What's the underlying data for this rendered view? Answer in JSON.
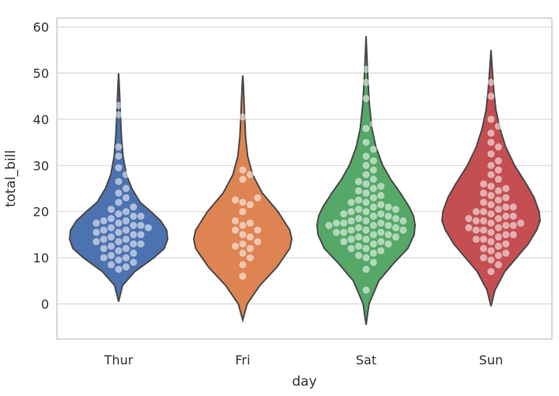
{
  "chart_data": {
    "type": "violin",
    "xlabel": "day",
    "ylabel": "total_bill",
    "ylim": [
      -8,
      62
    ],
    "yticks": [
      0,
      10,
      20,
      30,
      40,
      50,
      60
    ],
    "grid": true,
    "categories": [
      {
        "name": "Thur",
        "color": "#4c72b0",
        "kde": [
          [
            0.5,
            0.0
          ],
          [
            4,
            0.08
          ],
          [
            7,
            0.33
          ],
          [
            10,
            0.72
          ],
          [
            12,
            0.93
          ],
          [
            14,
            1.0
          ],
          [
            16,
            0.98
          ],
          [
            18,
            0.86
          ],
          [
            20,
            0.66
          ],
          [
            22,
            0.44
          ],
          [
            25,
            0.27
          ],
          [
            28,
            0.16
          ],
          [
            32,
            0.09
          ],
          [
            36,
            0.06
          ],
          [
            40,
            0.04
          ],
          [
            44,
            0.025
          ],
          [
            48,
            0.01
          ],
          [
            50,
            0.0
          ]
        ],
        "values": [
          7.5,
          8.0,
          8.5,
          9.0,
          9.5,
          10.0,
          10.0,
          10.5,
          11.0,
          11.5,
          12.0,
          12.0,
          12.5,
          13.0,
          13.0,
          13.5,
          13.5,
          14.0,
          14.0,
          14.5,
          15.0,
          15.0,
          15.5,
          15.5,
          16.0,
          16.0,
          16.5,
          16.5,
          17.0,
          17.0,
          17.5,
          17.5,
          18.0,
          18.0,
          18.5,
          19.0,
          19.0,
          19.5,
          20.0,
          20.5,
          21.0,
          22.0,
          23.0,
          24.0,
          25.0,
          26.5,
          28.0,
          29.5,
          32.0,
          34.0,
          35.0,
          41.0,
          43.0
        ]
      },
      {
        "name": "Fri",
        "color": "#dd8452",
        "kde": [
          [
            -3.5,
            0.0
          ],
          [
            0,
            0.09
          ],
          [
            4,
            0.35
          ],
          [
            8,
            0.7
          ],
          [
            12,
            0.96
          ],
          [
            14,
            1.0
          ],
          [
            16,
            0.96
          ],
          [
            20,
            0.72
          ],
          [
            24,
            0.4
          ],
          [
            28,
            0.2
          ],
          [
            32,
            0.1
          ],
          [
            36,
            0.06
          ],
          [
            40,
            0.04
          ],
          [
            44,
            0.025
          ],
          [
            48,
            0.01
          ],
          [
            49.5,
            0.0
          ]
        ],
        "values": [
          6.0,
          8.5,
          10.0,
          11.0,
          12.0,
          12.5,
          13.0,
          13.5,
          14.5,
          15.0,
          16.0,
          16.0,
          17.0,
          17.5,
          18.0,
          20.0,
          21.5,
          22.0,
          22.5,
          23.0,
          27.0,
          28.0,
          29.0,
          40.5
        ]
      },
      {
        "name": "Sat",
        "color": "#55a868",
        "kde": [
          [
            -4.5,
            0.0
          ],
          [
            0,
            0.06
          ],
          [
            5,
            0.26
          ],
          [
            9,
            0.58
          ],
          [
            12,
            0.85
          ],
          [
            15,
            0.98
          ],
          [
            17,
            1.0
          ],
          [
            19,
            0.97
          ],
          [
            21,
            0.88
          ],
          [
            24,
            0.7
          ],
          [
            27,
            0.5
          ],
          [
            30,
            0.34
          ],
          [
            34,
            0.2
          ],
          [
            38,
            0.12
          ],
          [
            43,
            0.07
          ],
          [
            48,
            0.04
          ],
          [
            53,
            0.02
          ],
          [
            58,
            0.0
          ]
        ],
        "values": [
          3.0,
          7.5,
          9.0,
          10.0,
          10.5,
          11.0,
          11.5,
          12.0,
          12.0,
          12.5,
          13.0,
          13.0,
          13.5,
          13.5,
          14.0,
          14.0,
          14.5,
          14.5,
          15.0,
          15.0,
          15.5,
          15.5,
          15.5,
          16.0,
          16.0,
          16.0,
          16.5,
          16.5,
          17.0,
          17.0,
          17.0,
          17.5,
          17.5,
          17.5,
          18.0,
          18.0,
          18.0,
          18.5,
          18.5,
          19.0,
          19.0,
          19.5,
          19.5,
          20.0,
          20.0,
          20.5,
          20.5,
          21.0,
          21.0,
          21.5,
          22.0,
          22.0,
          22.5,
          23.0,
          23.5,
          24.0,
          24.5,
          25.0,
          25.5,
          26.0,
          26.5,
          27.0,
          28.0,
          29.0,
          30.0,
          31.0,
          32.0,
          33.5,
          35.0,
          38.0,
          39.0,
          44.5,
          48.0,
          50.8
        ]
      },
      {
        "name": "Sun",
        "color": "#c44e52",
        "kde": [
          [
            -0.5,
            0.0
          ],
          [
            3,
            0.08
          ],
          [
            7,
            0.28
          ],
          [
            10,
            0.52
          ],
          [
            13,
            0.76
          ],
          [
            16,
            0.93
          ],
          [
            18,
            1.0
          ],
          [
            20,
            0.98
          ],
          [
            23,
            0.88
          ],
          [
            26,
            0.72
          ],
          [
            30,
            0.48
          ],
          [
            34,
            0.3
          ],
          [
            38,
            0.18
          ],
          [
            42,
            0.1
          ],
          [
            46,
            0.06
          ],
          [
            50,
            0.03
          ],
          [
            55,
            0.0
          ]
        ],
        "values": [
          7.0,
          8.5,
          9.5,
          10.0,
          10.5,
          11.0,
          11.5,
          12.0,
          12.5,
          13.0,
          13.5,
          14.0,
          14.0,
          14.5,
          15.0,
          15.0,
          15.5,
          16.0,
          16.0,
          16.5,
          16.5,
          17.0,
          17.0,
          17.5,
          17.5,
          18.0,
          18.0,
          18.5,
          18.5,
          19.0,
          19.0,
          19.5,
          20.0,
          20.0,
          20.5,
          21.0,
          21.0,
          21.5,
          22.0,
          22.5,
          23.0,
          23.5,
          24.0,
          24.5,
          25.0,
          25.5,
          26.0,
          27.0,
          28.0,
          29.0,
          30.0,
          31.0,
          32.5,
          34.0,
          35.0,
          37.0,
          38.5,
          40.0,
          45.0,
          48.0
        ]
      }
    ]
  }
}
